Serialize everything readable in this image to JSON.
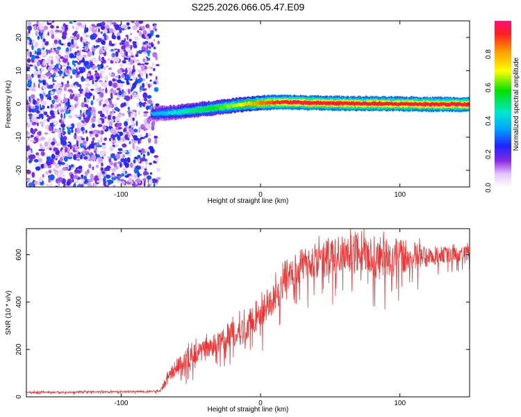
{
  "title": "S225.2026.066.05.47.E09",
  "chart_data": [
    {
      "type": "heatmap",
      "xlabel": "Height of straight line (km)",
      "ylabel": "Frequency (Hz)",
      "xlim": [
        -168,
        150
      ],
      "ylim": [
        -25,
        25
      ],
      "xticks": [
        -100,
        0,
        100
      ],
      "yticks": [
        -20,
        -10,
        0,
        10,
        20
      ],
      "colorbar": {
        "label": "Normalized spectral amplitude",
        "range": [
          0,
          1
        ],
        "ticks": [
          "0.0",
          "0.2",
          "0.4",
          "0.6",
          "0.8"
        ],
        "tick_values": [
          0,
          0.2,
          0.4,
          0.6,
          0.8
        ]
      },
      "noise_region_x": [
        -168,
        -73
      ],
      "ridge": {
        "x": [
          -78,
          -70,
          -60,
          -50,
          -40,
          -30,
          -20,
          -10,
          0,
          10,
          20,
          30,
          40,
          50,
          60,
          70,
          80,
          90,
          100,
          110,
          120,
          130,
          140,
          150
        ],
        "freq": [
          -3,
          -2.8,
          -2.5,
          -2,
          -1.5,
          -1,
          -0.5,
          0,
          0.3,
          0.5,
          0.5,
          0.4,
          0.3,
          0.2,
          0.2,
          0.1,
          0.1,
          0,
          0,
          0,
          -0.1,
          -0.1,
          -0.1,
          -0.2
        ],
        "amplitude": [
          0.35,
          0.4,
          0.45,
          0.5,
          0.55,
          0.6,
          0.65,
          0.75,
          0.85,
          0.9,
          0.95,
          0.95,
          0.95,
          0.95,
          0.95,
          0.95,
          0.95,
          0.95,
          0.95,
          0.95,
          0.95,
          0.95,
          0.95,
          0.95
        ]
      }
    },
    {
      "type": "line",
      "xlabel": "Height of straight line (km)",
      "ylabel": "SNR (10 * v/v)",
      "xlim": [
        -168,
        150
      ],
      "ylim": [
        0,
        710
      ],
      "xticks": [
        -100,
        0,
        100
      ],
      "yticks": [
        0,
        200,
        400,
        600
      ],
      "series": [
        {
          "color": "#ee3333",
          "x": [
            -168,
            -140,
            -110,
            -90,
            -80,
            -72,
            -68,
            -62,
            -55,
            -48,
            -40,
            -30,
            -20,
            -10,
            0,
            10,
            20,
            30,
            40,
            50,
            60,
            70,
            80,
            90,
            100,
            110,
            120,
            130,
            140,
            150
          ],
          "y": [
            20,
            20,
            22,
            22,
            22,
            25,
            60,
            120,
            160,
            180,
            200,
            230,
            260,
            300,
            350,
            420,
            500,
            560,
            580,
            590,
            600,
            600,
            590,
            590,
            590,
            600,
            590,
            600,
            600,
            610
          ],
          "spread": [
            6,
            6,
            6,
            6,
            6,
            8,
            40,
            60,
            70,
            70,
            70,
            80,
            90,
            100,
            110,
            110,
            120,
            120,
            130,
            140,
            140,
            150,
            150,
            140,
            130,
            100,
            70,
            60,
            50,
            50
          ]
        }
      ]
    }
  ]
}
